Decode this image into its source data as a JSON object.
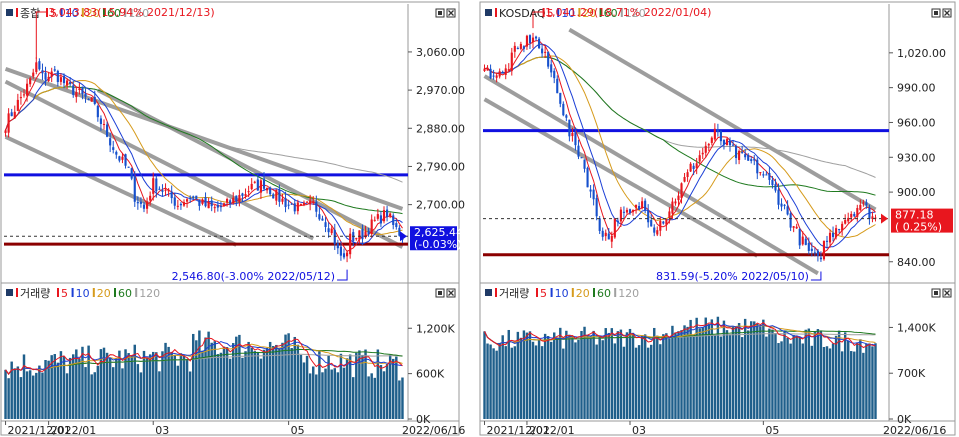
{
  "colors": {
    "up": "#e8161e",
    "down": "#1650cc",
    "vol_bar": "#1f5f8b",
    "ma5": "#e8161e",
    "ma10": "#1c3fd6",
    "ma20": "#d69b1c",
    "ma60": "#1f7a1f",
    "ma120": "#a0a0a0",
    "channel": "#8c8c8c",
    "resistance": "#1010e0",
    "support": "#8b0000",
    "price_box_left": "#1010e0",
    "price_box_right": "#e8161e"
  },
  "chart_data": [
    {
      "type": "candlestick",
      "panel": "kospi-price",
      "legend": [
        {
          "label": "종합",
          "color": "#e8161e"
        },
        {
          "label": "5",
          "color": "#e8161e"
        },
        {
          "label": "10",
          "color": "#1c3fd6"
        },
        {
          "label": "20",
          "color": "#d69b1c"
        },
        {
          "label": "60",
          "color": "#1f7a1f"
        },
        {
          "label": "120",
          "color": "#a0a0a0"
        }
      ],
      "y_ticks": [
        "3,060.00",
        "2,970.00",
        "2,880.00",
        "2,790.00",
        "2,700.00"
      ],
      "y_tick_values": [
        3060,
        2970,
        2880,
        2790,
        2700
      ],
      "ylim": [
        2527,
        3140
      ],
      "x_ticks": [
        "2021/12/01",
        "2022/01",
        "03",
        "05",
        "2022/06/16"
      ],
      "current_price": "2,625.44",
      "current_change": "(-0.03%)",
      "current_value": 2625.44,
      "resistance_level": 2770,
      "support_level": 2607,
      "high_annotation": "3,043.83(15.94% 2021/12/13)",
      "low_annotation": "2,546.80(-3.00% 2022/05/12)",
      "high_value": 3043.83,
      "low_value": 2546.8
    },
    {
      "type": "bar",
      "panel": "kospi-volume",
      "legend": [
        {
          "label": "거래량",
          "color": "#e8161e"
        },
        {
          "label": "5",
          "color": "#e8161e"
        },
        {
          "label": "10",
          "color": "#1c3fd6"
        },
        {
          "label": "20",
          "color": "#d69b1c"
        },
        {
          "label": "60",
          "color": "#1f7a1f"
        },
        {
          "label": "120",
          "color": "#a0a0a0"
        }
      ],
      "y_ticks": [
        "1,200K",
        "600K",
        "0K"
      ],
      "y_tick_values": [
        1200,
        600,
        0
      ],
      "ylim": [
        0,
        1600
      ],
      "x_ticks": [
        "2021/12/01",
        "2022/01",
        "03",
        "05",
        "2022/06/16"
      ]
    },
    {
      "type": "candlestick",
      "panel": "kosdaq-price",
      "legend": [
        {
          "label": "KOSDAQ",
          "color": "#e8161e"
        },
        {
          "label": "5",
          "color": "#e8161e"
        },
        {
          "label": "10",
          "color": "#1c3fd6"
        },
        {
          "label": "20",
          "color": "#d69b1c"
        },
        {
          "label": "60",
          "color": "#1f7a1f"
        },
        {
          "label": "120",
          "color": "#a0a0a0"
        }
      ],
      "y_ticks": [
        "1,020.00",
        "990.00",
        "960.00",
        "930.00",
        "900.00",
        "840.00"
      ],
      "y_tick_values": [
        1020,
        990,
        960,
        930,
        900,
        840
      ],
      "ylim": [
        826,
        1050
      ],
      "x_ticks": [
        "2021/12/01",
        "2022/01",
        "03",
        "05",
        "2022/06/16"
      ],
      "current_price": "877.18",
      "current_change": "( 0.25%)",
      "current_value": 877.18,
      "resistance_level": 953,
      "support_level": 846,
      "high_annotation": "1,041.29(18.71% 2022/01/04)",
      "low_annotation": "831.59(-5.20% 2022/05/10)",
      "high_value": 1041.29,
      "low_value": 831.59
    },
    {
      "type": "bar",
      "panel": "kosdaq-volume",
      "legend": [
        {
          "label": "거래량",
          "color": "#e8161e"
        },
        {
          "label": "5",
          "color": "#e8161e"
        },
        {
          "label": "10",
          "color": "#1c3fd6"
        },
        {
          "label": "20",
          "color": "#d69b1c"
        },
        {
          "label": "60",
          "color": "#1f7a1f"
        },
        {
          "label": "120",
          "color": "#a0a0a0"
        }
      ],
      "y_ticks": [
        "1,400K",
        "700K",
        "0K"
      ],
      "y_tick_values": [
        1400,
        700,
        0
      ],
      "ylim": [
        0,
        1850
      ],
      "x_ticks": [
        "2021/12/01",
        "2022/01",
        "03",
        "05",
        "2022/06/16"
      ]
    }
  ]
}
